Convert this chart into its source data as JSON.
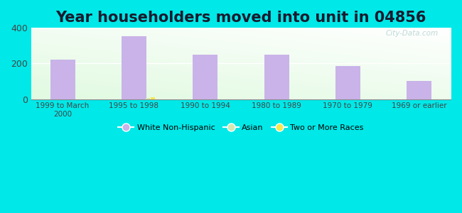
{
  "title": "Year householders moved into unit in 04856",
  "categories": [
    "1999 to March\n2000",
    "1995 to 1998",
    "1990 to 1994",
    "1980 to 1989",
    "1970 to 1979",
    "1969 or earlier"
  ],
  "white_non_hispanic": [
    220,
    355,
    248,
    250,
    185,
    100
  ],
  "asian": [
    0,
    8,
    0,
    0,
    0,
    0
  ],
  "two_or_more": [
    0,
    10,
    0,
    0,
    0,
    0
  ],
  "bar_color_white": "#c9b3e8",
  "bar_color_asian": "#d4e8b0",
  "bar_color_two": "#f5e84a",
  "ylim": [
    0,
    400
  ],
  "yticks": [
    0,
    200,
    400
  ],
  "background_outer": "#00e8e8",
  "title_fontsize": 15,
  "title_color": "#1a1a2e",
  "legend_labels": [
    "White Non-Hispanic",
    "Asian",
    "Two or More Races"
  ],
  "legend_colors": [
    "#c9b3e8",
    "#d4e8b0",
    "#f5e84a"
  ],
  "watermark": "City-Data.com"
}
